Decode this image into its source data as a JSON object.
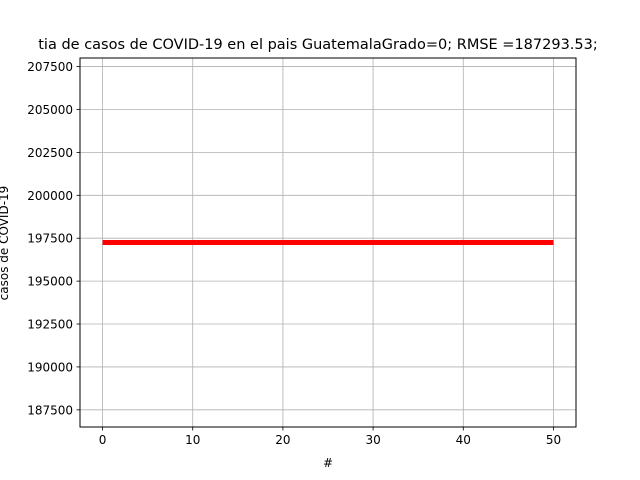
{
  "chart_data": {
    "type": "line",
    "title": "tia de casos de COVID-19 en el pais GuatemalaGrado=0; RMSE =187293.53;",
    "xlabel": "#",
    "ylabel": "casos de COVID-19",
    "xlim": [
      -2.5,
      52.5
    ],
    "ylim": [
      186500,
      208000
    ],
    "x_ticks": [
      0,
      10,
      20,
      30,
      40,
      50
    ],
    "x_tick_labels": [
      "0",
      "10",
      "20",
      "30",
      "40",
      "50"
    ],
    "y_ticks": [
      187500,
      190000,
      192500,
      195000,
      197500,
      200000,
      202500,
      205000,
      207500
    ],
    "y_tick_labels": [
      "187500",
      "190000",
      "192500",
      "195000",
      "197500",
      "200000",
      "202500",
      "205000",
      "207500"
    ],
    "grid": true,
    "legend": "none",
    "series": [
      {
        "color": "#ff0000",
        "x": [
          0,
          50
        ],
        "y": [
          197250,
          197250
        ]
      }
    ]
  }
}
